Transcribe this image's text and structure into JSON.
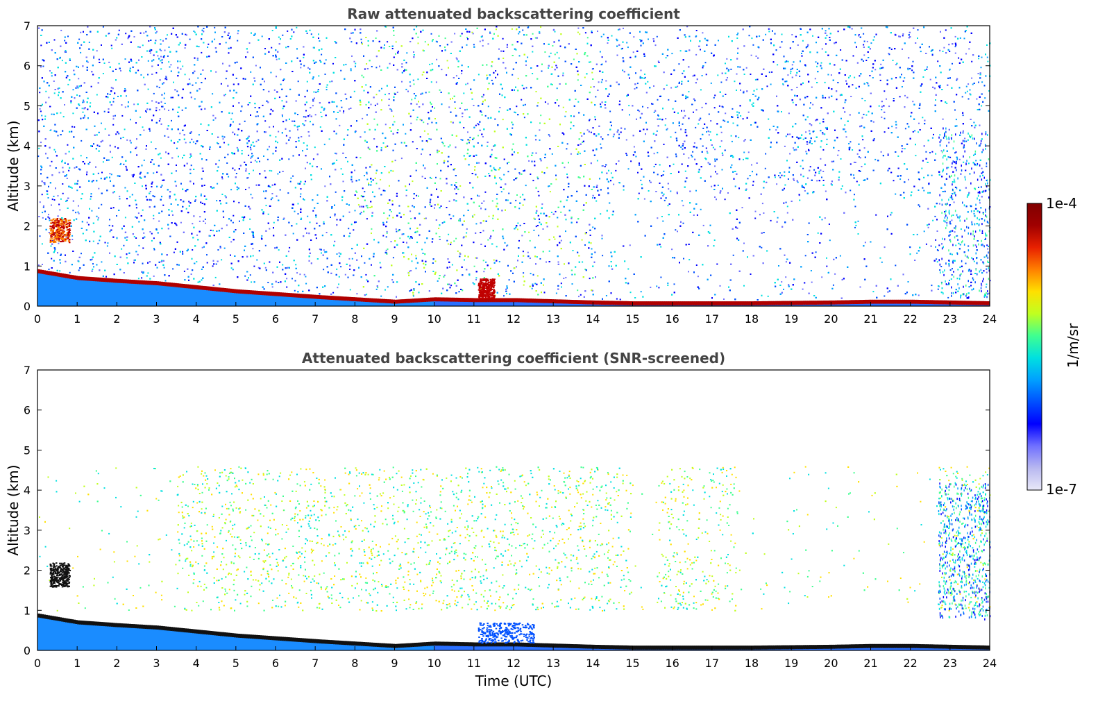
{
  "chart_data": [
    {
      "type": "heatmap",
      "title": "Raw attenuated backscattering coefficient",
      "xlabel": "",
      "ylabel": "Altitude (km)",
      "xlim": [
        0,
        24
      ],
      "ylim": [
        0,
        7
      ],
      "x_ticks": [
        "0",
        "1",
        "2",
        "3",
        "4",
        "5",
        "6",
        "7",
        "8",
        "9",
        "10",
        "11",
        "12",
        "13",
        "14",
        "15",
        "16",
        "17",
        "18",
        "19",
        "20",
        "21",
        "22",
        "23",
        "24"
      ],
      "y_ticks": [
        "0",
        "1",
        "2",
        "3",
        "4",
        "5",
        "6",
        "7"
      ],
      "screened": false,
      "layer_top_km": [
        [
          0,
          0.92
        ],
        [
          1,
          0.75
        ],
        [
          2,
          0.68
        ],
        [
          3,
          0.62
        ],
        [
          4,
          0.52
        ],
        [
          5,
          0.42
        ],
        [
          6,
          0.35
        ],
        [
          7,
          0.28
        ],
        [
          8,
          0.22
        ],
        [
          9,
          0.16
        ],
        [
          10,
          0.22
        ],
        [
          11,
          0.2
        ],
        [
          12,
          0.2
        ],
        [
          13,
          0.17
        ],
        [
          14,
          0.14
        ],
        [
          15,
          0.12
        ],
        [
          16,
          0.12
        ],
        [
          17,
          0.12
        ],
        [
          18,
          0.12
        ],
        [
          19,
          0.13
        ],
        [
          20,
          0.14
        ],
        [
          21,
          0.16
        ],
        [
          22,
          0.16
        ],
        [
          23,
          0.14
        ],
        [
          24,
          0.12
        ]
      ],
      "features": [
        {
          "name": "elevated layer",
          "x": [
            0.3,
            0.8
          ],
          "y": [
            1.6,
            2.2
          ]
        },
        {
          "name": "plume",
          "x": [
            11.1,
            11.5
          ],
          "y": [
            0.2,
            0.7
          ]
        },
        {
          "name": "high aerosol",
          "x": [
            22.7,
            24
          ],
          "y": [
            0.2,
            4.5
          ]
        }
      ]
    },
    {
      "type": "heatmap",
      "title": "Attenuated backscattering coefficient (SNR-screened)",
      "xlabel": "Time (UTC)",
      "ylabel": "Altitude (km)",
      "xlim": [
        0,
        24
      ],
      "ylim": [
        0,
        7
      ],
      "x_ticks": [
        "0",
        "1",
        "2",
        "3",
        "4",
        "5",
        "6",
        "7",
        "8",
        "9",
        "10",
        "11",
        "12",
        "13",
        "14",
        "15",
        "16",
        "17",
        "18",
        "19",
        "20",
        "21",
        "22",
        "23",
        "24"
      ],
      "y_ticks": [
        "0",
        "1",
        "2",
        "3",
        "4",
        "5",
        "6",
        "7"
      ],
      "screened": true,
      "layer_top_km": [
        [
          0,
          0.92
        ],
        [
          1,
          0.75
        ],
        [
          2,
          0.68
        ],
        [
          3,
          0.62
        ],
        [
          4,
          0.52
        ],
        [
          5,
          0.42
        ],
        [
          6,
          0.35
        ],
        [
          7,
          0.28
        ],
        [
          8,
          0.22
        ],
        [
          9,
          0.16
        ],
        [
          10,
          0.22
        ],
        [
          11,
          0.2
        ],
        [
          12,
          0.2
        ],
        [
          13,
          0.17
        ],
        [
          14,
          0.14
        ],
        [
          15,
          0.12
        ],
        [
          16,
          0.12
        ],
        [
          17,
          0.12
        ],
        [
          18,
          0.12
        ],
        [
          19,
          0.13
        ],
        [
          20,
          0.14
        ],
        [
          21,
          0.16
        ],
        [
          22,
          0.16
        ],
        [
          23,
          0.14
        ],
        [
          24,
          0.12
        ]
      ],
      "features": [
        {
          "name": "elevated layer",
          "x": [
            0.3,
            0.8
          ],
          "y": [
            1.6,
            2.2
          ]
        },
        {
          "name": "plume",
          "x": [
            11.1,
            12.5
          ],
          "y": [
            0.2,
            0.7
          ]
        },
        {
          "name": "high aerosol",
          "x": [
            22.7,
            24
          ],
          "y": [
            0.8,
            4.2
          ]
        }
      ]
    }
  ],
  "colorbar": {
    "label": "1/m/sr",
    "max_label": "1e-4",
    "min_label": "1e-7",
    "scale": "log",
    "colors": [
      "#e8e8f8",
      "#b8b8f0",
      "#7070ff",
      "#0000ff",
      "#0050ff",
      "#00a0ff",
      "#00e0e0",
      "#40ff90",
      "#c0ff20",
      "#ffe000",
      "#ff8000",
      "#e82000",
      "#a00000",
      "#800000"
    ]
  }
}
